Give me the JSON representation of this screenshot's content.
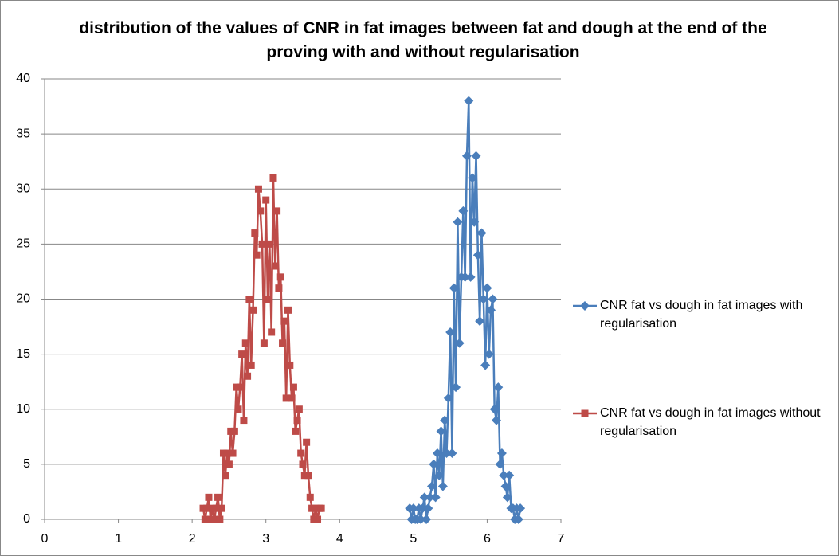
{
  "chart_data": {
    "type": "scatter",
    "title": "distribution of the values of CNR in fat images between fat and dough at the end of the proving with and without regularisation",
    "xlim": [
      0,
      7
    ],
    "xticks": [
      0,
      1,
      2,
      3,
      4,
      5,
      6,
      7
    ],
    "ylim": [
      0,
      40
    ],
    "yticks": [
      0,
      5,
      10,
      15,
      20,
      25,
      30,
      35,
      40
    ],
    "grid": true,
    "legend": "right",
    "series": [
      {
        "name": "CNR fat vs dough in fat images with regularisation",
        "color": "#4a7ebb",
        "marker": "diamond",
        "x": [
          4.95,
          4.975,
          5,
          5.025,
          5.05,
          5.075,
          5.1,
          5.125,
          5.15,
          5.175,
          5.2,
          5.225,
          5.25,
          5.275,
          5.3,
          5.325,
          5.35,
          5.375,
          5.4,
          5.425,
          5.45,
          5.475,
          5.5,
          5.525,
          5.55,
          5.575,
          5.6,
          5.625,
          5.65,
          5.675,
          5.7,
          5.725,
          5.75,
          5.775,
          5.8,
          5.825,
          5.85,
          5.875,
          5.9,
          5.925,
          5.95,
          5.975,
          6,
          6.025,
          6.05,
          6.075,
          6.1,
          6.125,
          6.15,
          6.175,
          6.2,
          6.225,
          6.25,
          6.275,
          6.3,
          6.325,
          6.35,
          6.375,
          6.4,
          6.425,
          6.45
        ],
        "values": [
          1,
          0,
          1,
          0,
          0,
          1,
          0,
          1,
          2,
          0,
          1,
          2,
          3,
          5,
          2,
          6,
          4,
          8,
          3,
          9,
          6,
          11,
          17,
          6,
          21,
          12,
          27,
          16,
          22,
          28,
          22,
          33,
          38,
          22,
          31,
          27,
          33,
          24,
          18,
          26,
          20,
          14,
          21,
          15,
          19,
          20,
          10,
          9,
          12,
          5,
          6,
          4,
          3,
          2,
          4,
          1,
          1,
          0,
          1,
          0,
          1
        ]
      },
      {
        "name": "CNR fat vs dough in fat images without regularisation",
        "color": "#be4b48",
        "marker": "square",
        "x": [
          2.15,
          2.175,
          2.2,
          2.225,
          2.25,
          2.275,
          2.3,
          2.325,
          2.35,
          2.375,
          2.4,
          2.425,
          2.45,
          2.475,
          2.5,
          2.525,
          2.55,
          2.575,
          2.6,
          2.625,
          2.65,
          2.675,
          2.7,
          2.725,
          2.75,
          2.775,
          2.8,
          2.825,
          2.85,
          2.875,
          2.9,
          2.925,
          2.95,
          2.975,
          3,
          3.025,
          3.05,
          3.075,
          3.1,
          3.125,
          3.15,
          3.175,
          3.2,
          3.225,
          3.25,
          3.275,
          3.3,
          3.325,
          3.35,
          3.375,
          3.4,
          3.425,
          3.45,
          3.475,
          3.5,
          3.525,
          3.55,
          3.575,
          3.6,
          3.625,
          3.65,
          3.675,
          3.7,
          3.725,
          3.75
        ],
        "values": [
          1,
          0,
          1,
          2,
          0,
          1,
          0,
          1,
          2,
          0,
          1,
          6,
          4,
          6,
          5,
          8,
          6,
          8,
          12,
          10,
          12,
          15,
          9,
          16,
          13,
          20,
          14,
          19,
          26,
          24,
          30,
          28,
          25,
          16,
          29,
          20,
          25,
          17,
          31,
          23,
          28,
          21,
          22,
          16,
          18,
          11,
          19,
          14,
          11,
          12,
          8,
          9,
          10,
          6,
          5,
          4,
          7,
          4,
          2,
          1,
          0,
          1,
          0,
          1,
          1
        ]
      }
    ]
  }
}
